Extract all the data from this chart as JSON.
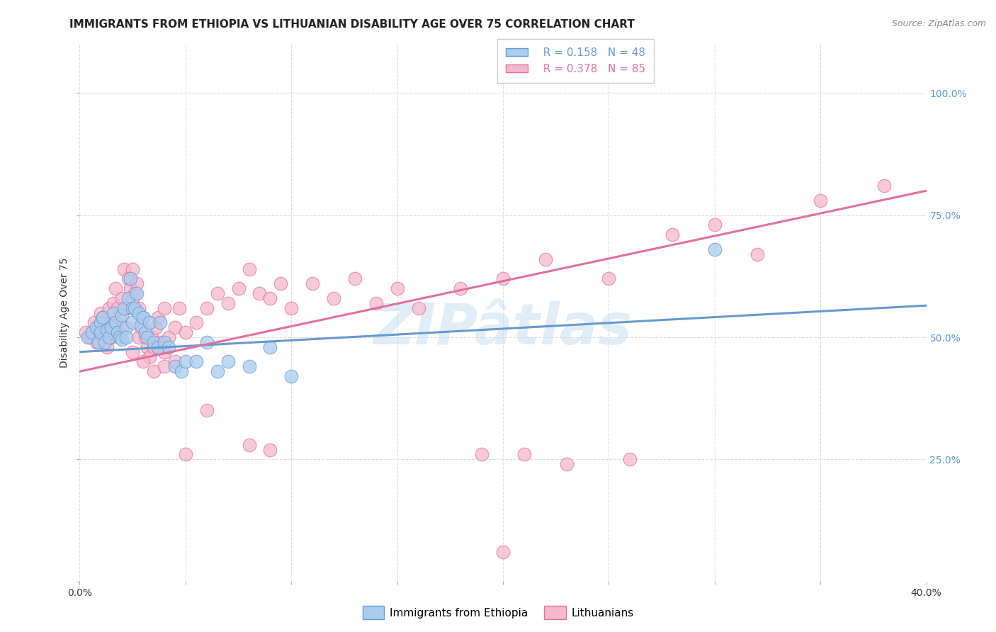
{
  "title": "IMMIGRANTS FROM ETHIOPIA VS LITHUANIAN DISABILITY AGE OVER 75 CORRELATION CHART",
  "source": "Source: ZipAtlas.com",
  "ylabel": "Disability Age Over 75",
  "ylabel_right_ticks": [
    "",
    "25.0%",
    "50.0%",
    "75.0%",
    "100.0%"
  ],
  "ylabel_right_vals": [
    0.0,
    0.25,
    0.5,
    0.75,
    1.0
  ],
  "xlim": [
    0.0,
    0.4
  ],
  "ylim": [
    0.0,
    1.1
  ],
  "watermark": "ZIPâtlas",
  "legend_blue_R": "R = 0.158",
  "legend_blue_N": "N = 48",
  "legend_pink_R": "R = 0.378",
  "legend_pink_N": "N = 85",
  "legend_label_blue": "Immigrants from Ethiopia",
  "legend_label_pink": "Lithuanians",
  "blue_color": "#aaccee",
  "blue_edge_color": "#6699cc",
  "pink_color": "#f5b8cc",
  "pink_edge_color": "#e070a0",
  "blue_scatter_x": [
    0.004,
    0.006,
    0.008,
    0.009,
    0.01,
    0.01,
    0.011,
    0.012,
    0.013,
    0.014,
    0.015,
    0.016,
    0.017,
    0.018,
    0.019,
    0.02,
    0.02,
    0.021,
    0.022,
    0.022,
    0.023,
    0.024,
    0.025,
    0.025,
    0.026,
    0.027,
    0.028,
    0.029,
    0.03,
    0.031,
    0.032,
    0.033,
    0.035,
    0.037,
    0.038,
    0.04,
    0.042,
    0.045,
    0.048,
    0.05,
    0.055,
    0.06,
    0.065,
    0.07,
    0.08,
    0.09,
    0.1,
    0.3
  ],
  "blue_scatter_y": [
    0.5,
    0.51,
    0.52,
    0.49,
    0.53,
    0.51,
    0.54,
    0.49,
    0.515,
    0.5,
    0.52,
    0.55,
    0.53,
    0.51,
    0.5,
    0.545,
    0.495,
    0.56,
    0.52,
    0.5,
    0.58,
    0.62,
    0.56,
    0.53,
    0.56,
    0.59,
    0.55,
    0.525,
    0.54,
    0.51,
    0.5,
    0.53,
    0.49,
    0.48,
    0.53,
    0.49,
    0.48,
    0.44,
    0.43,
    0.45,
    0.45,
    0.49,
    0.43,
    0.45,
    0.44,
    0.48,
    0.42,
    0.68
  ],
  "pink_scatter_x": [
    0.003,
    0.005,
    0.007,
    0.008,
    0.009,
    0.01,
    0.01,
    0.011,
    0.012,
    0.013,
    0.014,
    0.015,
    0.015,
    0.016,
    0.016,
    0.017,
    0.018,
    0.019,
    0.02,
    0.02,
    0.021,
    0.022,
    0.023,
    0.024,
    0.025,
    0.025,
    0.026,
    0.027,
    0.028,
    0.028,
    0.029,
    0.03,
    0.031,
    0.032,
    0.033,
    0.034,
    0.035,
    0.036,
    0.037,
    0.038,
    0.04,
    0.04,
    0.042,
    0.045,
    0.047,
    0.05,
    0.055,
    0.06,
    0.065,
    0.07,
    0.075,
    0.08,
    0.085,
    0.09,
    0.095,
    0.1,
    0.11,
    0.12,
    0.13,
    0.14,
    0.15,
    0.16,
    0.18,
    0.2,
    0.22,
    0.25,
    0.28,
    0.3,
    0.32,
    0.35,
    0.38,
    0.025,
    0.03,
    0.035,
    0.04,
    0.045,
    0.06,
    0.08,
    0.09,
    0.05,
    0.19,
    0.21,
    0.23,
    0.26,
    0.2
  ],
  "pink_scatter_y": [
    0.51,
    0.5,
    0.53,
    0.49,
    0.52,
    0.55,
    0.51,
    0.54,
    0.5,
    0.48,
    0.56,
    0.5,
    0.53,
    0.57,
    0.51,
    0.6,
    0.56,
    0.54,
    0.58,
    0.52,
    0.64,
    0.56,
    0.62,
    0.6,
    0.58,
    0.64,
    0.59,
    0.61,
    0.56,
    0.5,
    0.52,
    0.54,
    0.5,
    0.48,
    0.46,
    0.5,
    0.48,
    0.52,
    0.54,
    0.49,
    0.47,
    0.56,
    0.5,
    0.52,
    0.56,
    0.51,
    0.53,
    0.56,
    0.59,
    0.57,
    0.6,
    0.64,
    0.59,
    0.58,
    0.61,
    0.56,
    0.61,
    0.58,
    0.62,
    0.57,
    0.6,
    0.56,
    0.6,
    0.62,
    0.66,
    0.62,
    0.71,
    0.73,
    0.67,
    0.78,
    0.81,
    0.47,
    0.45,
    0.43,
    0.44,
    0.45,
    0.35,
    0.28,
    0.27,
    0.26,
    0.26,
    0.26,
    0.24,
    0.25,
    0.06
  ],
  "blue_line_x": [
    0.0,
    0.4
  ],
  "blue_line_y": [
    0.47,
    0.565
  ],
  "pink_line_x": [
    0.0,
    0.4
  ],
  "pink_line_y": [
    0.43,
    0.8
  ],
  "grid_color": "#dddddd",
  "background_color": "#ffffff",
  "title_fontsize": 11,
  "axis_label_fontsize": 10,
  "tick_fontsize": 10,
  "legend_fontsize": 11,
  "right_tick_color": "#5599dd"
}
